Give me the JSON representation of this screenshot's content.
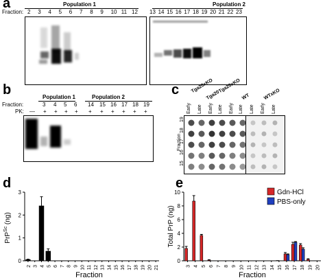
{
  "panels": {
    "a": {
      "label": "a",
      "fraction_label": "Fraction:",
      "population1": "Population 1",
      "population2": "Population 2",
      "fractions_left": [
        "2",
        "3",
        "4",
        "5",
        "6",
        "7",
        "8",
        "9",
        "10",
        "11",
        "12"
      ],
      "fractions_right": [
        "13",
        "14",
        "15",
        "16",
        "17",
        "18",
        "19",
        "20",
        "21",
        "22",
        "23"
      ],
      "pk_label": "PK:"
    },
    "b": {
      "label": "b",
      "fraction_label": "Fraction:",
      "pk_label": "PK:",
      "population1": "Population 1",
      "population2": "Population 2",
      "fractions": [
        "3",
        "4",
        "5",
        "6",
        "14",
        "15",
        "16",
        "17",
        "18",
        "19"
      ],
      "pk": [
        "—",
        "+",
        "+",
        "+",
        "+",
        "+",
        "+",
        "+",
        "+",
        "+",
        "+"
      ]
    },
    "c": {
      "label": "c",
      "groups": [
        "Tga20xKO",
        "Tga20",
        "Tga20xKO",
        "WT",
        "WTxKO"
      ],
      "columns": [
        "Early",
        "Late",
        "Early",
        "Late",
        "Early",
        "Late",
        "Late",
        "Early",
        "Late"
      ],
      "rows": [
        "19",
        "18",
        "17",
        "16",
        "15"
      ],
      "fraction_label": "Fraction"
    },
    "d": {
      "label": "d",
      "ylabel": "PrP",
      "ylabel_sup": "Sc",
      "ylabel_unit": " (ng)",
      "xlabel": "Fraction"
    },
    "e": {
      "label": "e",
      "ylabel": "Total PrP (ng)",
      "xlabel": "Fraction",
      "legend": [
        "Gdn-HCl",
        "PBS-only"
      ]
    }
  },
  "chart_data": [
    {
      "type": "bar",
      "panel": "d",
      "xlabel": "Fraction",
      "ylabel": "PrPSc (ng)",
      "categories": [
        "2",
        "3",
        "4",
        "5",
        "6",
        "7",
        "8",
        "9",
        "10",
        "11",
        "12",
        "13",
        "14",
        "15",
        "16",
        "17",
        "18",
        "19",
        "20",
        "21"
      ],
      "values": [
        0.05,
        0,
        2.4,
        0.42,
        0,
        0,
        0,
        0,
        0,
        0,
        0,
        0,
        0,
        0,
        0,
        0,
        0,
        0,
        0,
        0
      ],
      "errors": [
        0.02,
        0,
        0.4,
        0.1,
        0,
        0,
        0,
        0,
        0,
        0,
        0,
        0,
        0,
        0,
        0,
        0,
        0,
        0,
        0,
        0
      ],
      "ylim": [
        0,
        3
      ],
      "yticks": [
        "0",
        "1",
        "2",
        "3"
      ],
      "colors": [
        "#000000"
      ]
    },
    {
      "type": "bar",
      "panel": "e",
      "xlabel": "Fraction",
      "ylabel": "Total PrP (ng)",
      "categories": [
        "3",
        "4",
        "5",
        "6",
        "7",
        "8",
        "9",
        "10",
        "11",
        "12",
        "13",
        "14",
        "15",
        "16",
        "17",
        "18",
        "19",
        "20"
      ],
      "series": [
        {
          "name": "Gdn-HCl",
          "color": "#d62728",
          "values": [
            1.8,
            8.7,
            3.7,
            0.1,
            0,
            0,
            0,
            0,
            0,
            0,
            0,
            0,
            0.05,
            1.0,
            2.4,
            2.3,
            0.2,
            0
          ],
          "errors": [
            0.3,
            0.8,
            0.15,
            0.05,
            0,
            0,
            0,
            0,
            0,
            0,
            0,
            0,
            0,
            0.2,
            0.3,
            0.2,
            0.1,
            0
          ]
        },
        {
          "name": "PBS-only",
          "color": "#1f3fbf",
          "values": [
            0,
            0,
            0,
            0,
            0,
            0,
            0,
            0,
            0,
            0,
            0,
            0,
            0,
            0.9,
            2.7,
            1.7,
            0,
            0
          ],
          "errors": [
            0,
            0,
            0,
            0,
            0,
            0,
            0,
            0,
            0,
            0,
            0,
            0,
            0,
            0.1,
            0.1,
            0.2,
            0,
            0
          ]
        }
      ],
      "ylim": [
        0,
        10
      ],
      "yticks": [
        "0",
        "2",
        "4",
        "6",
        "8",
        "10"
      ],
      "xticks": [
        "3",
        "4",
        "5",
        "6",
        "7",
        "8",
        "9",
        "10",
        "11",
        "12",
        "13",
        "14",
        "15",
        "16",
        "17",
        "18",
        "19",
        "20"
      ]
    }
  ]
}
